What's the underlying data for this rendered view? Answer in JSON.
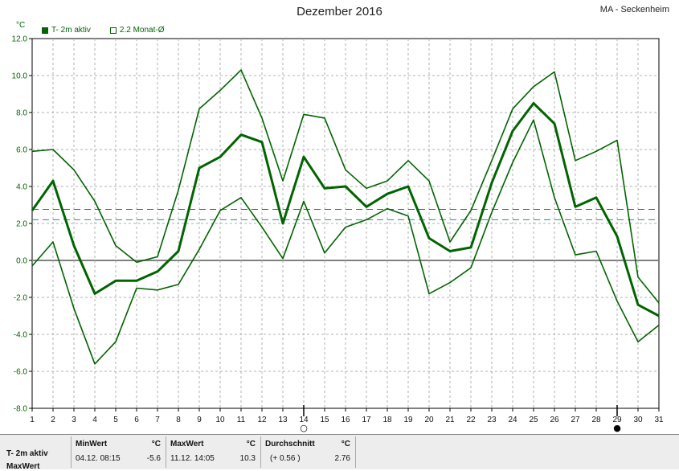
{
  "header": {
    "title": "Dezember 2016",
    "station": "MA - Seckenheim",
    "unit": "°C"
  },
  "legend": [
    {
      "label": "T- 2m aktiv",
      "style": "filled"
    },
    {
      "label": "2.2 Monat-Ø",
      "style": "open"
    }
  ],
  "colors": {
    "series": "#006400",
    "avg_line_1": "#2e7d32",
    "avg_line_2": "#2a8a8a",
    "zero_line": "#808080",
    "grid": "#b0b0b0"
  },
  "chart_data": {
    "type": "line",
    "ylim": [
      -8,
      12
    ],
    "y_ticks": [
      "12.0",
      "10.0",
      "8.0",
      "6.0",
      "4.0",
      "2.0",
      "0.0",
      "-2.0",
      "-4.0",
      "-6.0",
      "-8.0"
    ],
    "x": [
      1,
      2,
      3,
      4,
      5,
      6,
      7,
      8,
      9,
      10,
      11,
      12,
      13,
      14,
      15,
      16,
      17,
      18,
      19,
      20,
      21,
      22,
      23,
      24,
      25,
      26,
      27,
      28,
      29,
      30,
      31
    ],
    "grid": true,
    "reference_lines": [
      {
        "name": "2.2 Monat-Ø",
        "value": 2.2
      },
      {
        "value": 2.76
      }
    ],
    "series": [
      {
        "name": "T- 2m aktiv",
        "role": "mean",
        "values": [
          2.7,
          4.3,
          0.8,
          -1.8,
          -1.1,
          -1.1,
          -0.6,
          0.5,
          5.0,
          5.6,
          6.8,
          6.4,
          2.0,
          5.6,
          3.9,
          4.0,
          2.9,
          3.6,
          4.0,
          1.2,
          0.5,
          0.7,
          4.2,
          7.0,
          8.5,
          7.4,
          2.9,
          3.4,
          1.3,
          -2.4,
          -3.0
        ]
      },
      {
        "role": "max",
        "values": [
          5.9,
          6.0,
          4.9,
          3.2,
          0.8,
          -0.1,
          0.2,
          3.8,
          8.2,
          9.2,
          10.3,
          7.7,
          4.3,
          7.9,
          7.7,
          4.9,
          3.9,
          4.3,
          5.4,
          4.3,
          1.0,
          2.7,
          5.4,
          8.2,
          9.4,
          10.2,
          5.4,
          5.9,
          6.5,
          -0.9,
          -2.3
        ]
      },
      {
        "role": "min",
        "values": [
          -0.3,
          1.0,
          -2.6,
          -5.6,
          -4.4,
          -1.5,
          -1.6,
          -1.3,
          0.6,
          2.7,
          3.4,
          1.8,
          0.1,
          3.2,
          0.4,
          1.8,
          2.2,
          2.8,
          2.4,
          -1.8,
          -1.2,
          -0.4,
          2.6,
          5.3,
          7.6,
          3.4,
          0.3,
          0.5,
          -2.2,
          -4.4,
          -3.5
        ]
      }
    ],
    "markers": [
      {
        "day": 14,
        "symbol": "○"
      },
      {
        "day": 29,
        "symbol": "●"
      }
    ]
  },
  "footer": {
    "series_label": "T- 2m aktiv",
    "series_label_2": "MaxWert",
    "min": {
      "header": "MinWert",
      "unit": "°C",
      "time": "04.12.  08:15",
      "value": "-5.6"
    },
    "max": {
      "header": "MaxWert",
      "unit": "°C",
      "time": "11.12.  14:05",
      "value": "10.3"
    },
    "avg": {
      "header": "Durchschnitt",
      "unit": "°C",
      "delta": "(+ 0.56 )",
      "value": "2.76"
    }
  }
}
